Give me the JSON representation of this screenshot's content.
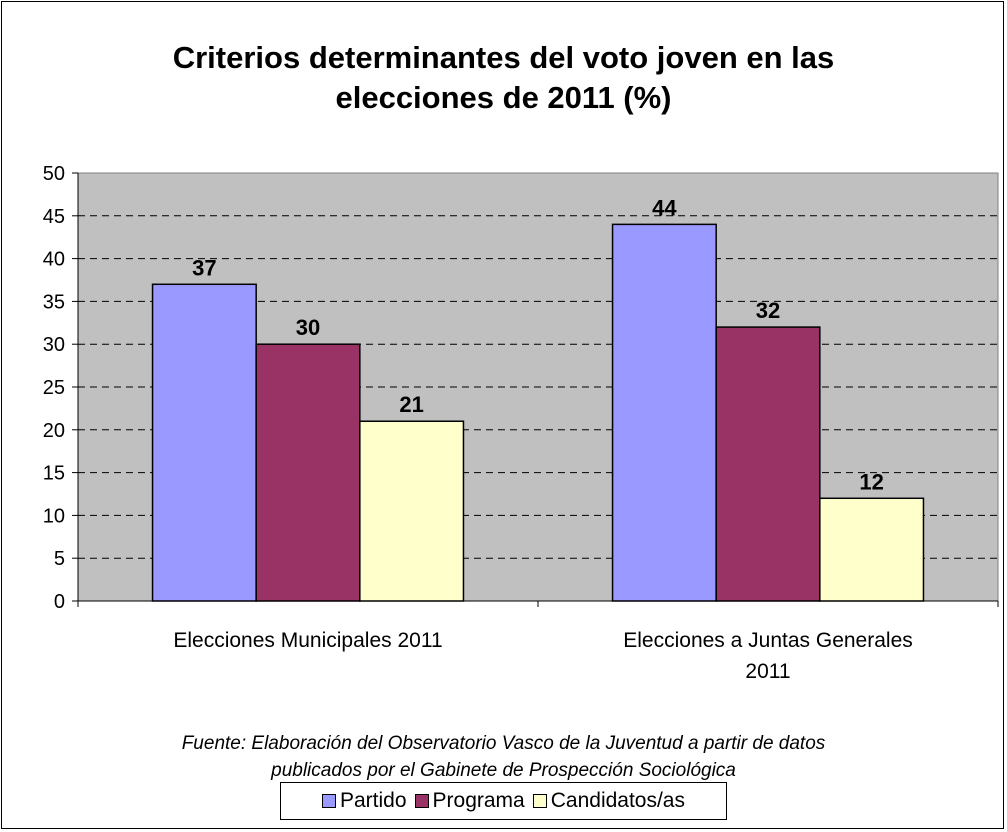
{
  "chart_data": {
    "type": "bar",
    "title_lines": [
      "Criterios determinantes del voto joven en las",
      "elecciones de 2011 (%)"
    ],
    "categories": [
      [
        "Elecciones Municipales 2011"
      ],
      [
        "Elecciones a Juntas Generales",
        "2011"
      ]
    ],
    "series": [
      {
        "name": "Partido",
        "color": "#9999ff",
        "values": [
          37,
          44
        ]
      },
      {
        "name": "Programa",
        "color": "#993366",
        "values": [
          30,
          32
        ]
      },
      {
        "name": "Candidatos/as",
        "color": "#ffffcc",
        "values": [
          21,
          12
        ]
      }
    ],
    "ylim": [
      0,
      50
    ],
    "yticks": [
      0,
      5,
      10,
      15,
      20,
      25,
      30,
      35,
      40,
      45,
      50
    ],
    "plot_background": "#c0c0c0",
    "grid": "dashed",
    "legend_position": "bottom",
    "source_lines": [
      "Fuente: Elaboración del Observatorio Vasco de la Juventud a partir de datos",
      "publicados por el Gabinete de Prospección Sociológica"
    ]
  }
}
